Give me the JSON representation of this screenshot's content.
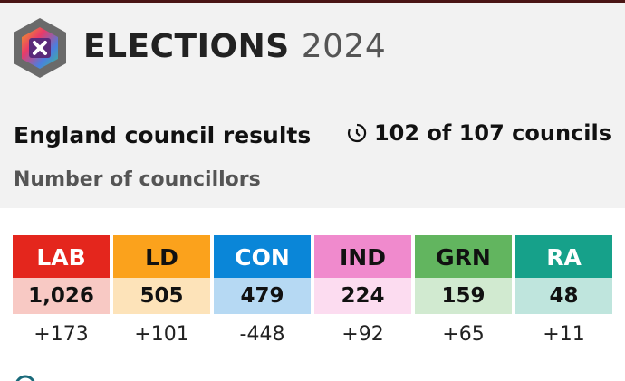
{
  "header": {
    "brand": "ELECTIONS",
    "year": "2024"
  },
  "section": {
    "title": "England council results",
    "progress": "102 of 107 councils",
    "subtitle": "Number of councillors"
  },
  "parties": [
    {
      "abbr": "LAB",
      "seats": "1,026",
      "change": "+173"
    },
    {
      "abbr": "LD",
      "seats": "505",
      "change": "+101"
    },
    {
      "abbr": "CON",
      "seats": "479",
      "change": "-448"
    },
    {
      "abbr": "IND",
      "seats": "224",
      "change": "+92"
    },
    {
      "abbr": "GRN",
      "seats": "159",
      "change": "+65"
    },
    {
      "abbr": "RA",
      "seats": "48",
      "change": "+11"
    }
  ]
}
